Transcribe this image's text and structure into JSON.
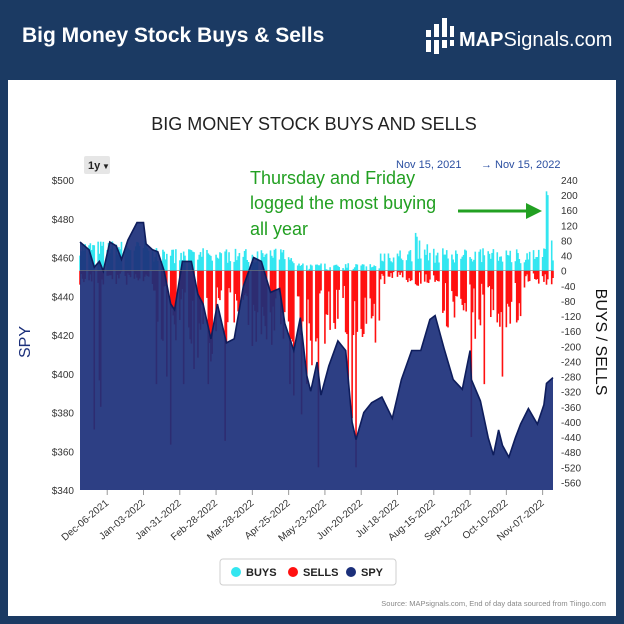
{
  "header": {
    "title": "Big Money Stock Buys & Sells",
    "logo_bold": "MAP",
    "logo_rest": "Signals.com"
  },
  "colors": {
    "buys": "#33e6f0",
    "sells": "#ff1010",
    "spy": "#1b2f7a",
    "header_bg": "#1b3a63",
    "annotation": "#22a022"
  },
  "chart_data": {
    "type": "bar",
    "title": "BIG MONEY STOCK BUYS AND SELLS",
    "range_selector": "1y",
    "date_range": {
      "from": "Nov 15, 2021",
      "arrow": "→",
      "to": "Nov 15, 2022"
    },
    "y_left_label": "SPY",
    "y_right_label": "BUYS / SELLS",
    "y_left_ticks": [
      "$500",
      "$480",
      "$460",
      "$440",
      "$420",
      "$400",
      "$380",
      "$360",
      "$340"
    ],
    "y_left_range": [
      340,
      500
    ],
    "y_right_ticks": [
      "240",
      "200",
      "160",
      "120",
      "80",
      "40",
      "0",
      "-40",
      "-80",
      "-120",
      "-160",
      "-200",
      "-240",
      "-280",
      "-320",
      "-360",
      "-400",
      "-440",
      "-480",
      "-520",
      "-560"
    ],
    "y_right_range": [
      -580,
      240
    ],
    "x_ticks": [
      "Dec-06-2021",
      "Jan-03-2022",
      "Jan-31-2022",
      "Feb-28-2022",
      "Mar-28-2022",
      "Apr-25-2022",
      "May-23-2022",
      "Jun-20-2022",
      "Jul-18-2022",
      "Aug-15-2022",
      "Sep-12-2022",
      "Oct-10-2022",
      "Nov-07-2022"
    ],
    "x_range": [
      "2021-11-15",
      "2022-11-15"
    ],
    "annotation": [
      "Thursday and Friday",
      "logged the most buying",
      "all year"
    ],
    "legend": [
      "BUYS",
      "SELLS",
      "SPY"
    ],
    "source": "Source: MAPsignals.com, End of day data sourced from Tiingo.com",
    "spy_series": {
      "name": "SPY",
      "dates": [
        "2021-11-15",
        "2021-11-22",
        "2021-11-26",
        "2021-11-30",
        "2021-12-03",
        "2021-12-08",
        "2021-12-13",
        "2021-12-17",
        "2021-12-22",
        "2021-12-29",
        "2022-01-03",
        "2022-01-05",
        "2022-01-10",
        "2022-01-14",
        "2022-01-19",
        "2022-01-24",
        "2022-01-27",
        "2022-02-02",
        "2022-02-09",
        "2022-02-14",
        "2022-02-18",
        "2022-02-24",
        "2022-03-01",
        "2022-03-08",
        "2022-03-14",
        "2022-03-21",
        "2022-03-29",
        "2022-04-04",
        "2022-04-11",
        "2022-04-18",
        "2022-04-22",
        "2022-04-29",
        "2022-05-04",
        "2022-05-09",
        "2022-05-12",
        "2022-05-17",
        "2022-05-20",
        "2022-05-26",
        "2022-06-02",
        "2022-06-08",
        "2022-06-13",
        "2022-06-16",
        "2022-06-22",
        "2022-06-28",
        "2022-07-06",
        "2022-07-14",
        "2022-07-21",
        "2022-07-29",
        "2022-08-05",
        "2022-08-12",
        "2022-08-16",
        "2022-08-23",
        "2022-08-30",
        "2022-09-06",
        "2022-09-12",
        "2022-09-13",
        "2022-09-20",
        "2022-09-26",
        "2022-09-30",
        "2022-10-04",
        "2022-10-07",
        "2022-10-12",
        "2022-10-17",
        "2022-10-21",
        "2022-10-27",
        "2022-11-03",
        "2022-11-08",
        "2022-11-10",
        "2022-11-15"
      ],
      "values": [
        468,
        464,
        455,
        458,
        453,
        468,
        466,
        459,
        469,
        478,
        478,
        467,
        464,
        463,
        453,
        436,
        433,
        458,
        458,
        441,
        436,
        418,
        436,
        416,
        418,
        445,
        460,
        458,
        442,
        444,
        426,
        412,
        429,
        399,
        391,
        406,
        389,
        404,
        417,
        412,
        375,
        366,
        380,
        385,
        388,
        377,
        397,
        412,
        412,
        428,
        430,
        413,
        397,
        392,
        412,
        397,
        386,
        367,
        358,
        371,
        363,
        357,
        367,
        374,
        382,
        374,
        384,
        395,
        398
      ]
    },
    "bar_series": [
      {
        "name": "BUYS",
        "note": "daily buy signals, positive axis"
      },
      {
        "name": "SELLS",
        "note": "daily sell signals, negative axis"
      }
    ]
  }
}
